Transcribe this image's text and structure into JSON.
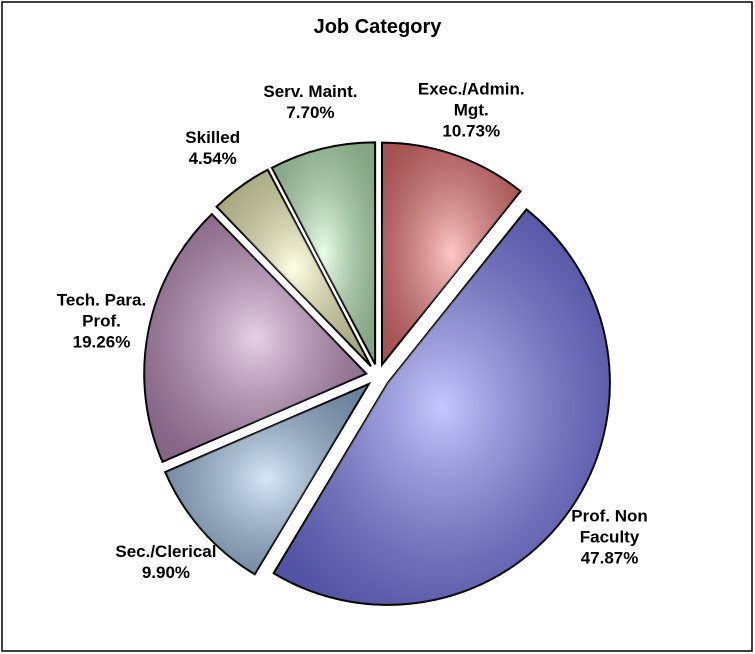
{
  "chart_data": {
    "type": "pie",
    "title": "Job Category",
    "categories": [
      "Exec./Admin.\nMgt.",
      "Prof. Non\nFaculty",
      "Sec./Clerical",
      "Tech. Para.\nProf.",
      "Skilled",
      "Serv. Maint."
    ],
    "values": [
      10.73,
      47.87,
      9.9,
      19.26,
      4.54,
      7.7
    ],
    "value_labels": [
      "10.73%",
      "47.87%",
      "9.90%",
      "19.26%",
      "4.54%",
      "7.70%"
    ],
    "colors": [
      "#ff8080",
      "#8080ff",
      "#a6caf0",
      "#cc99cc",
      "#ffffc0",
      "#ccffcc"
    ]
  }
}
